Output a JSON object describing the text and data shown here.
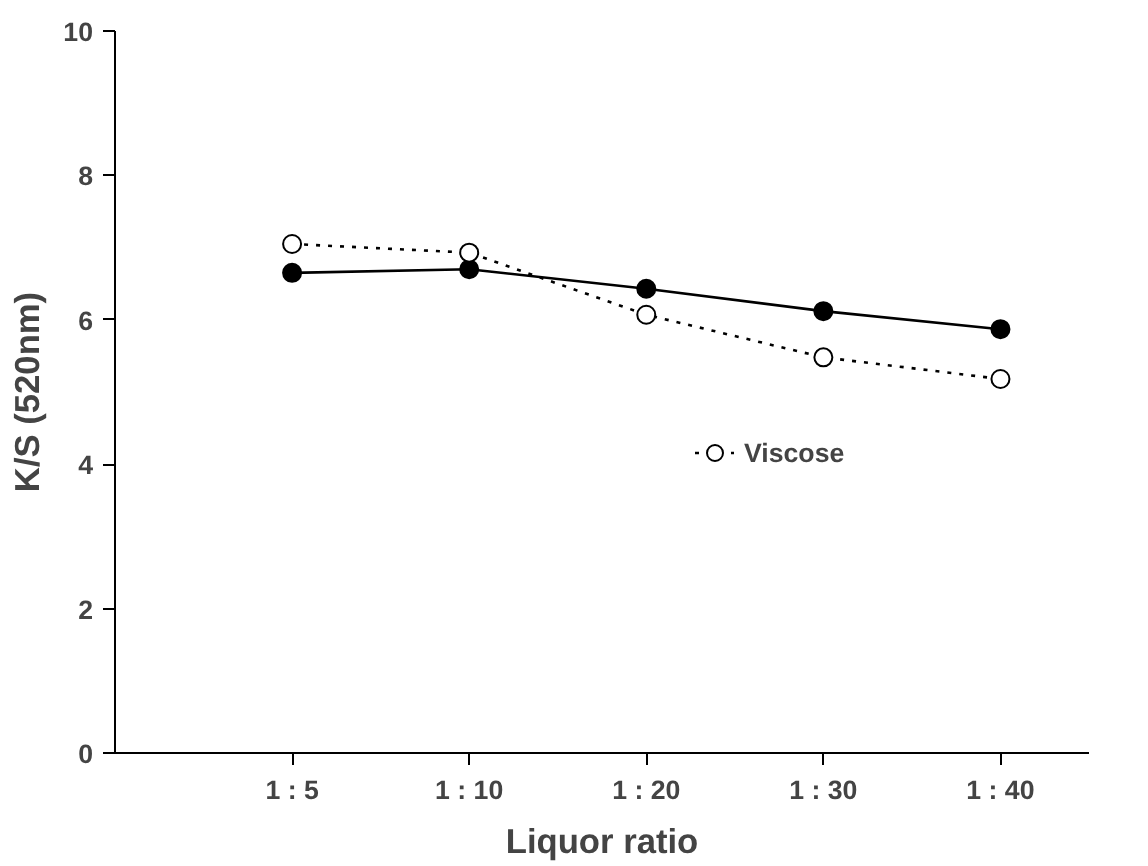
{
  "chart_data": {
    "type": "line",
    "xlabel": "Liquor ratio",
    "ylabel": "K/S (520nm)",
    "categories": [
      "1 : 5",
      "1 : 10",
      "1 : 20",
      "1 : 30",
      "1 : 40"
    ],
    "series": [
      {
        "color": "#000000",
        "values": [
          6.65,
          6.7,
          6.43,
          6.12,
          5.87
        ],
        "line_style": "solid"
      },
      {
        "name": "Viscose",
        "color": "#000000",
        "values": [
          7.05,
          6.93,
          6.07,
          5.48,
          5.18
        ],
        "line_style": "dotted"
      }
    ],
    "ylim": [
      0,
      10
    ],
    "yticks": [
      0,
      2,
      4,
      6,
      8,
      10
    ],
    "grid": false,
    "legend": "right",
    "marker": "circle"
  }
}
